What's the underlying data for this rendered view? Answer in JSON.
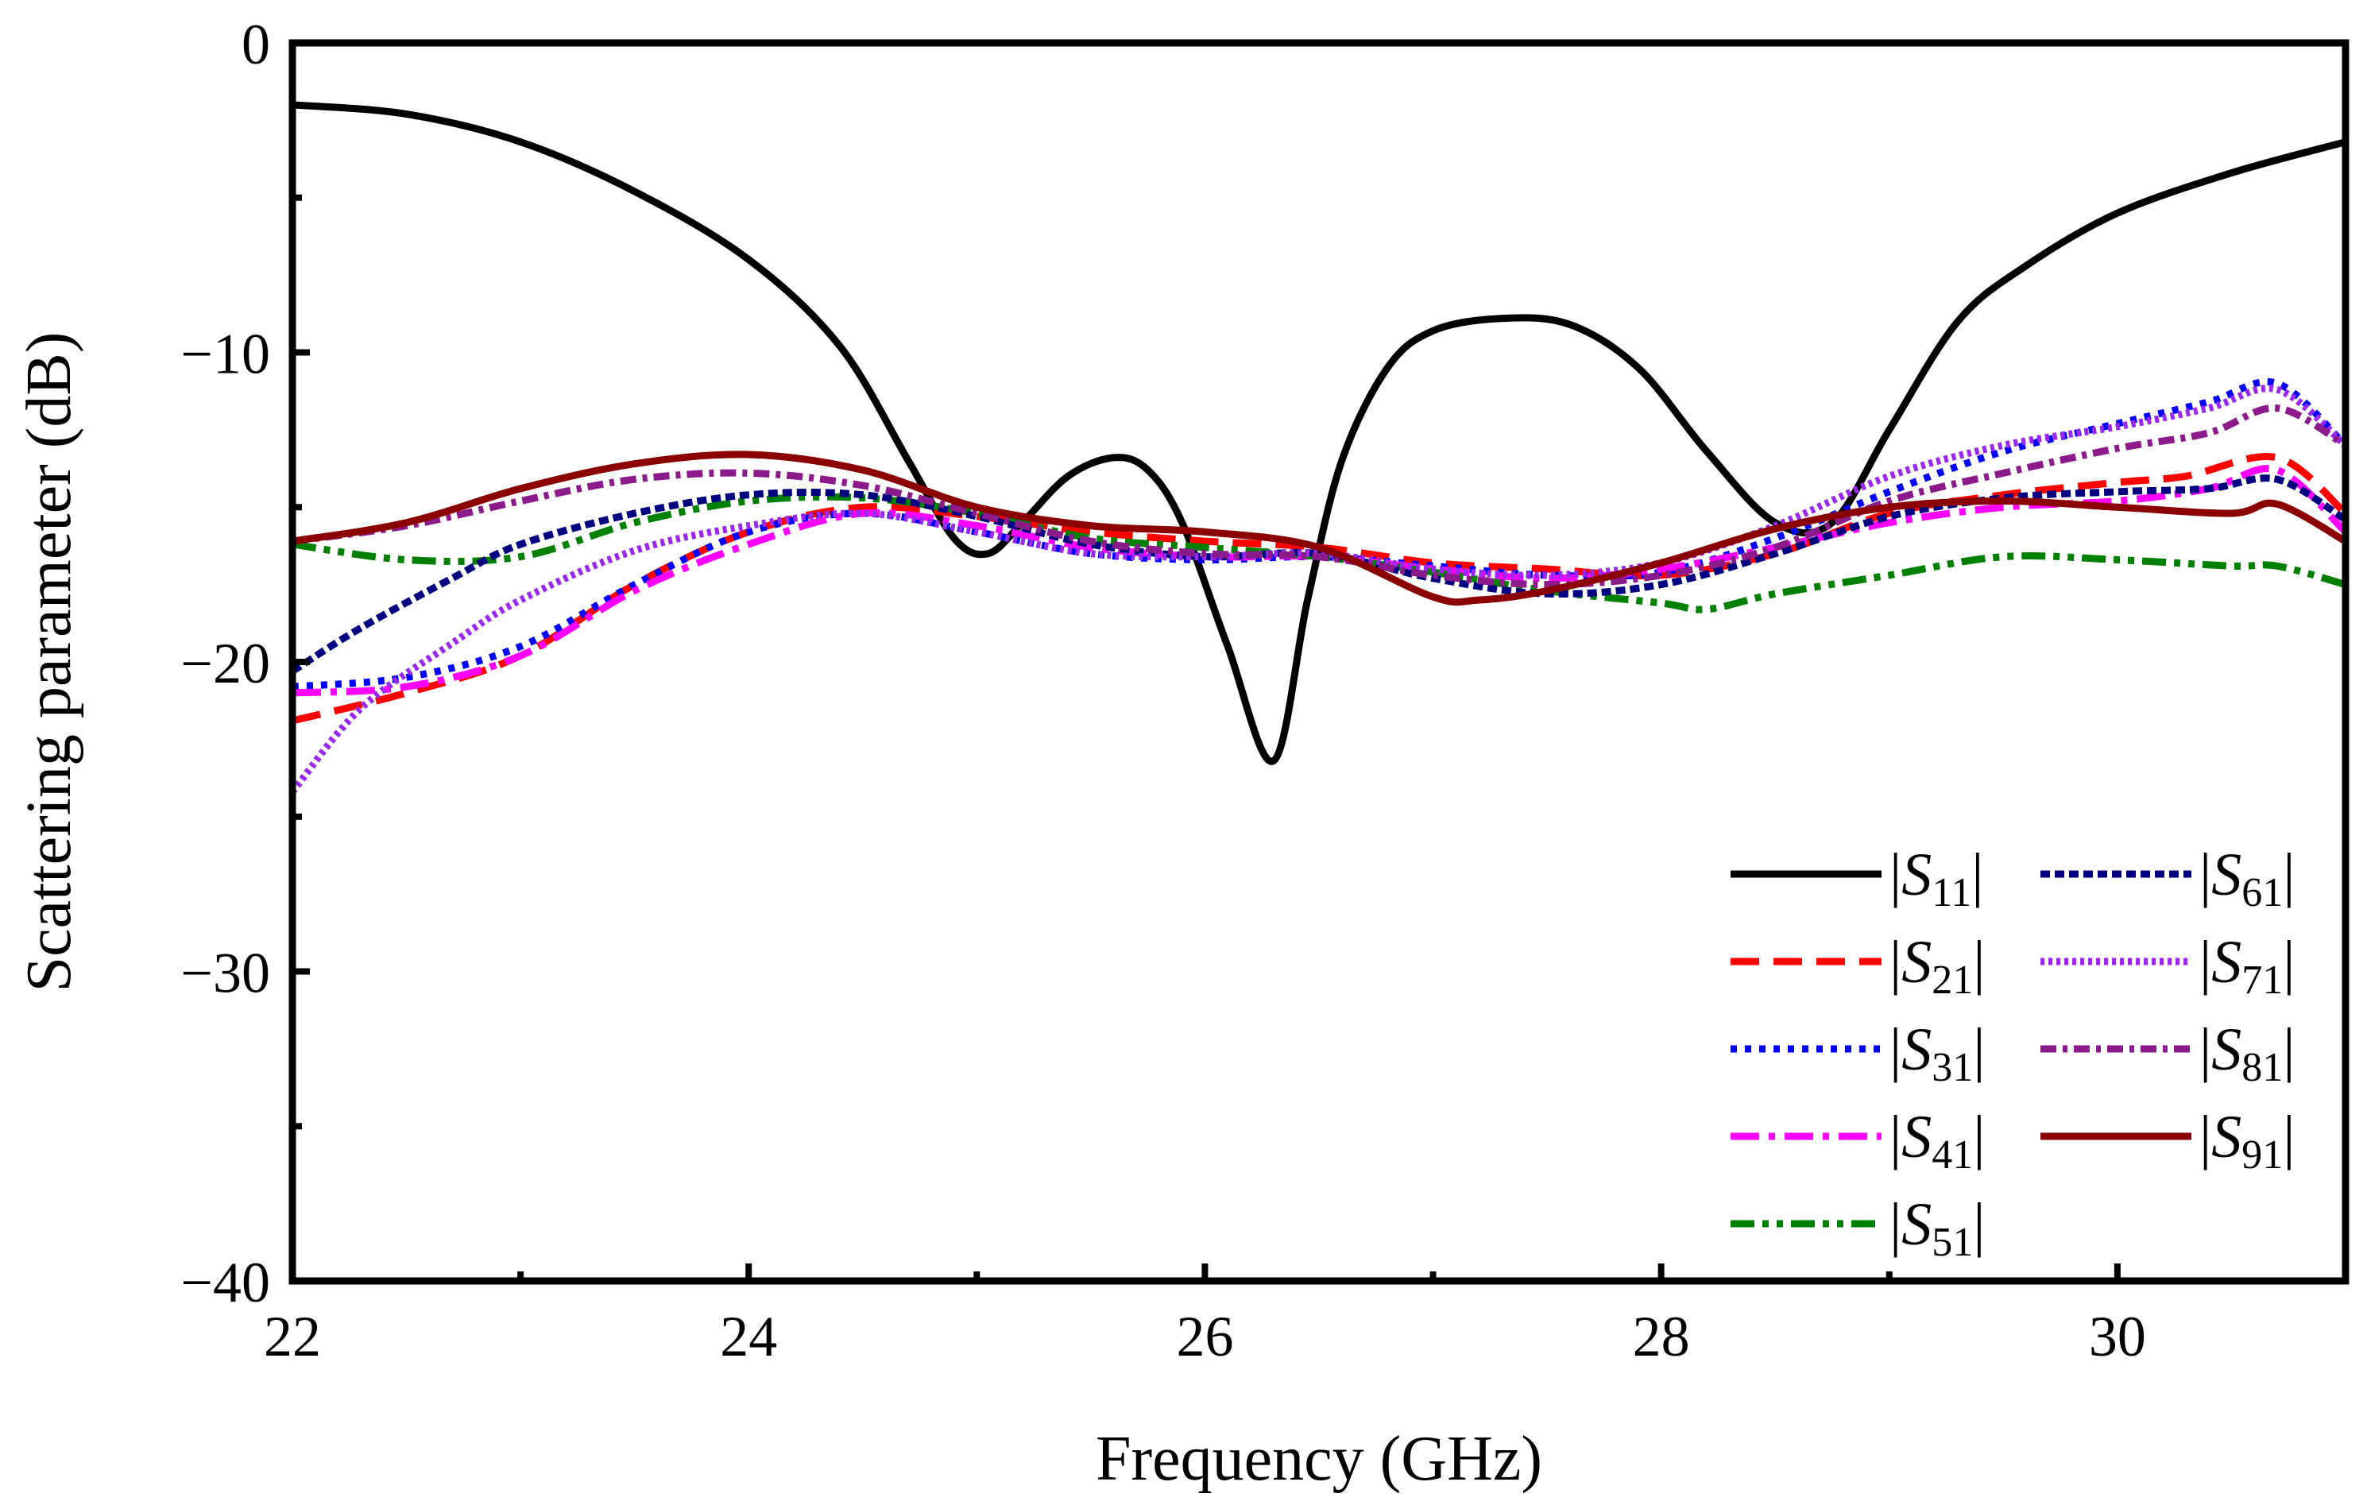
{
  "chart_data": {
    "type": "line",
    "title": "",
    "xlabel": "Frequency (GHz)",
    "ylabel": "Scattering parameter (dB)",
    "xlim": [
      22,
      31
    ],
    "ylim": [
      -40,
      0
    ],
    "xticks": [
      22,
      24,
      26,
      28,
      30
    ],
    "xtick_labels": [
      "22",
      "24",
      "26",
      "28",
      "30"
    ],
    "yticks": [
      0,
      -10,
      -20,
      -30,
      -40
    ],
    "ytick_labels": [
      "0",
      "−10",
      "−20",
      "−30",
      "−40"
    ],
    "grid": false,
    "legend_position": "bottom-right",
    "series": [
      {
        "name": "|S11|",
        "sub": "11",
        "color": "#000000",
        "dash": "",
        "x": [
          22,
          22.5,
          23,
          23.5,
          24,
          24.4,
          24.7,
          24.9,
          25.05,
          25.2,
          25.4,
          25.6,
          25.75,
          25.9,
          26.1,
          26.3,
          26.45,
          26.6,
          26.8,
          27.0,
          27.3,
          27.6,
          27.9,
          28.2,
          28.5,
          28.75,
          29.0,
          29.3,
          29.6,
          30.0,
          30.5,
          31.0
        ],
        "values": [
          -2,
          -2.3,
          -3.2,
          -4.8,
          -7,
          -9.8,
          -13.5,
          -16,
          -16.5,
          -15.5,
          -14,
          -13.4,
          -13.8,
          -15.5,
          -19.5,
          -23.2,
          -18,
          -13.5,
          -10.5,
          -9.3,
          -8.9,
          -9.1,
          -10.5,
          -13.2,
          -15.5,
          -15.5,
          -12.5,
          -9,
          -7.2,
          -5.5,
          -4.2,
          -3.2
        ]
      },
      {
        "name": "|S21|",
        "sub": "21",
        "color": "#ff0000",
        "dash": "36 18",
        "x": [
          22,
          22.5,
          23,
          23.5,
          24,
          24.5,
          25,
          25.5,
          26,
          26.5,
          27,
          27.5,
          28,
          28.5,
          29,
          29.5,
          30,
          30.3,
          30.7,
          31.0
        ],
        "values": [
          -21.9,
          -21,
          -19.8,
          -17.5,
          -15.8,
          -15,
          -15.3,
          -15.8,
          -16.1,
          -16.3,
          -16.8,
          -17,
          -17.2,
          -16.5,
          -15.2,
          -14.6,
          -14.2,
          -14,
          -13.4,
          -15.2
        ]
      },
      {
        "name": "|S31|",
        "sub": "31",
        "color": "#0000ff",
        "dash": "8 10",
        "x": [
          22,
          22.5,
          23,
          23.5,
          24,
          24.5,
          25,
          25.5,
          26,
          26.5,
          27,
          27.5,
          28,
          28.5,
          29,
          29.5,
          30,
          30.4,
          30.7,
          31.0
        ],
        "values": [
          -20.8,
          -20.5,
          -19.5,
          -17.5,
          -15.8,
          -15.2,
          -15.8,
          -16.5,
          -16.7,
          -16.6,
          -16.9,
          -17.2,
          -17.1,
          -16,
          -14.5,
          -13.2,
          -12.3,
          -11.6,
          -11,
          -13
        ]
      },
      {
        "name": "|S41|",
        "sub": "41",
        "color": "#ff00ff",
        "dash": "36 12 8 12",
        "x": [
          22,
          22.5,
          23,
          23.5,
          24,
          24.5,
          25,
          25.5,
          26,
          26.5,
          27,
          27.5,
          28,
          28.5,
          29,
          29.5,
          30,
          30.4,
          30.7,
          31.0
        ],
        "values": [
          -21,
          -20.8,
          -19.8,
          -17.7,
          -16.2,
          -15.2,
          -15.6,
          -16.3,
          -16.6,
          -16.6,
          -17,
          -17.3,
          -17,
          -16.3,
          -15.5,
          -15,
          -14.8,
          -14.4,
          -13.8,
          -15.8
        ]
      },
      {
        "name": "|S51|",
        "sub": "51",
        "color": "#008000",
        "dash": "30 10 8 10 8 10",
        "x": [
          22,
          22.5,
          23,
          23.5,
          24,
          24.5,
          25,
          25.5,
          26,
          26.5,
          27,
          27.5,
          28,
          28.2,
          28.5,
          29,
          29.5,
          30,
          30.5,
          30.7,
          31.0
        ],
        "values": [
          -16.2,
          -16.7,
          -16.6,
          -15.5,
          -14.8,
          -14.7,
          -15.2,
          -16,
          -16.3,
          -16.6,
          -17.1,
          -17.7,
          -18.1,
          -18.3,
          -17.8,
          -17.2,
          -16.6,
          -16.7,
          -16.9,
          -16.9,
          -17.5
        ]
      },
      {
        "name": "|S61|",
        "sub": "61",
        "color": "#000080",
        "dash": "12 6",
        "x": [
          22,
          22.3,
          22.7,
          23,
          23.5,
          24,
          24.5,
          25,
          25.5,
          26,
          26.5,
          27,
          27.5,
          28,
          28.5,
          29,
          29.5,
          30,
          30.4,
          30.7,
          31.0
        ],
        "values": [
          -20.3,
          -18.9,
          -17.3,
          -16.2,
          -15.2,
          -14.6,
          -14.6,
          -15.3,
          -16.2,
          -16.6,
          -16.5,
          -17.3,
          -17.8,
          -17.5,
          -16.5,
          -15.3,
          -14.7,
          -14.5,
          -14.4,
          -14.1,
          -15.4
        ]
      },
      {
        "name": "|S71|",
        "sub": "71",
        "color": "#9a28f0",
        "dash": "5 5",
        "x": [
          22,
          22.3,
          22.7,
          23,
          23.5,
          24,
          24.5,
          25,
          25.5,
          26,
          26.5,
          27,
          27.5,
          28,
          28.5,
          29,
          29.5,
          30,
          30.4,
          30.7,
          31.0
        ],
        "values": [
          -24.2,
          -21.5,
          -19.4,
          -18,
          -16.4,
          -15.6,
          -15.2,
          -15.8,
          -16.5,
          -16.6,
          -16.5,
          -17,
          -17.2,
          -16.8,
          -15.6,
          -14,
          -13,
          -12.4,
          -11.8,
          -11.2,
          -13
        ]
      },
      {
        "name": "|S81|",
        "sub": "81",
        "color": "#8b1a8b",
        "dash": "20 8 6 8",
        "x": [
          22,
          22.5,
          23,
          23.5,
          24,
          24.5,
          25,
          25.5,
          26,
          26.5,
          27,
          27.5,
          28,
          28.5,
          29,
          29.5,
          30,
          30.4,
          30.7,
          31.0
        ],
        "values": [
          -16.1,
          -15.6,
          -14.8,
          -14.1,
          -13.9,
          -14.3,
          -15.2,
          -16.1,
          -16.5,
          -16.6,
          -17.2,
          -17.5,
          -17.2,
          -16.3,
          -14.8,
          -13.9,
          -13.1,
          -12.6,
          -11.8,
          -13
        ]
      },
      {
        "name": "|S91|",
        "sub": "91",
        "color": "#8b0000",
        "dash": "",
        "x": [
          22,
          22.5,
          23,
          23.5,
          24,
          24.5,
          25,
          25.5,
          26,
          26.5,
          27,
          27.2,
          27.5,
          28,
          28.5,
          29,
          29.5,
          30,
          30.5,
          30.7,
          31.0
        ],
        "values": [
          -16.1,
          -15.5,
          -14.4,
          -13.6,
          -13.3,
          -13.8,
          -15,
          -15.6,
          -15.8,
          -16.3,
          -17.9,
          -18,
          -17.7,
          -16.8,
          -15.7,
          -15,
          -14.8,
          -15,
          -15.2,
          -14.9,
          -16.1
        ]
      }
    ]
  }
}
